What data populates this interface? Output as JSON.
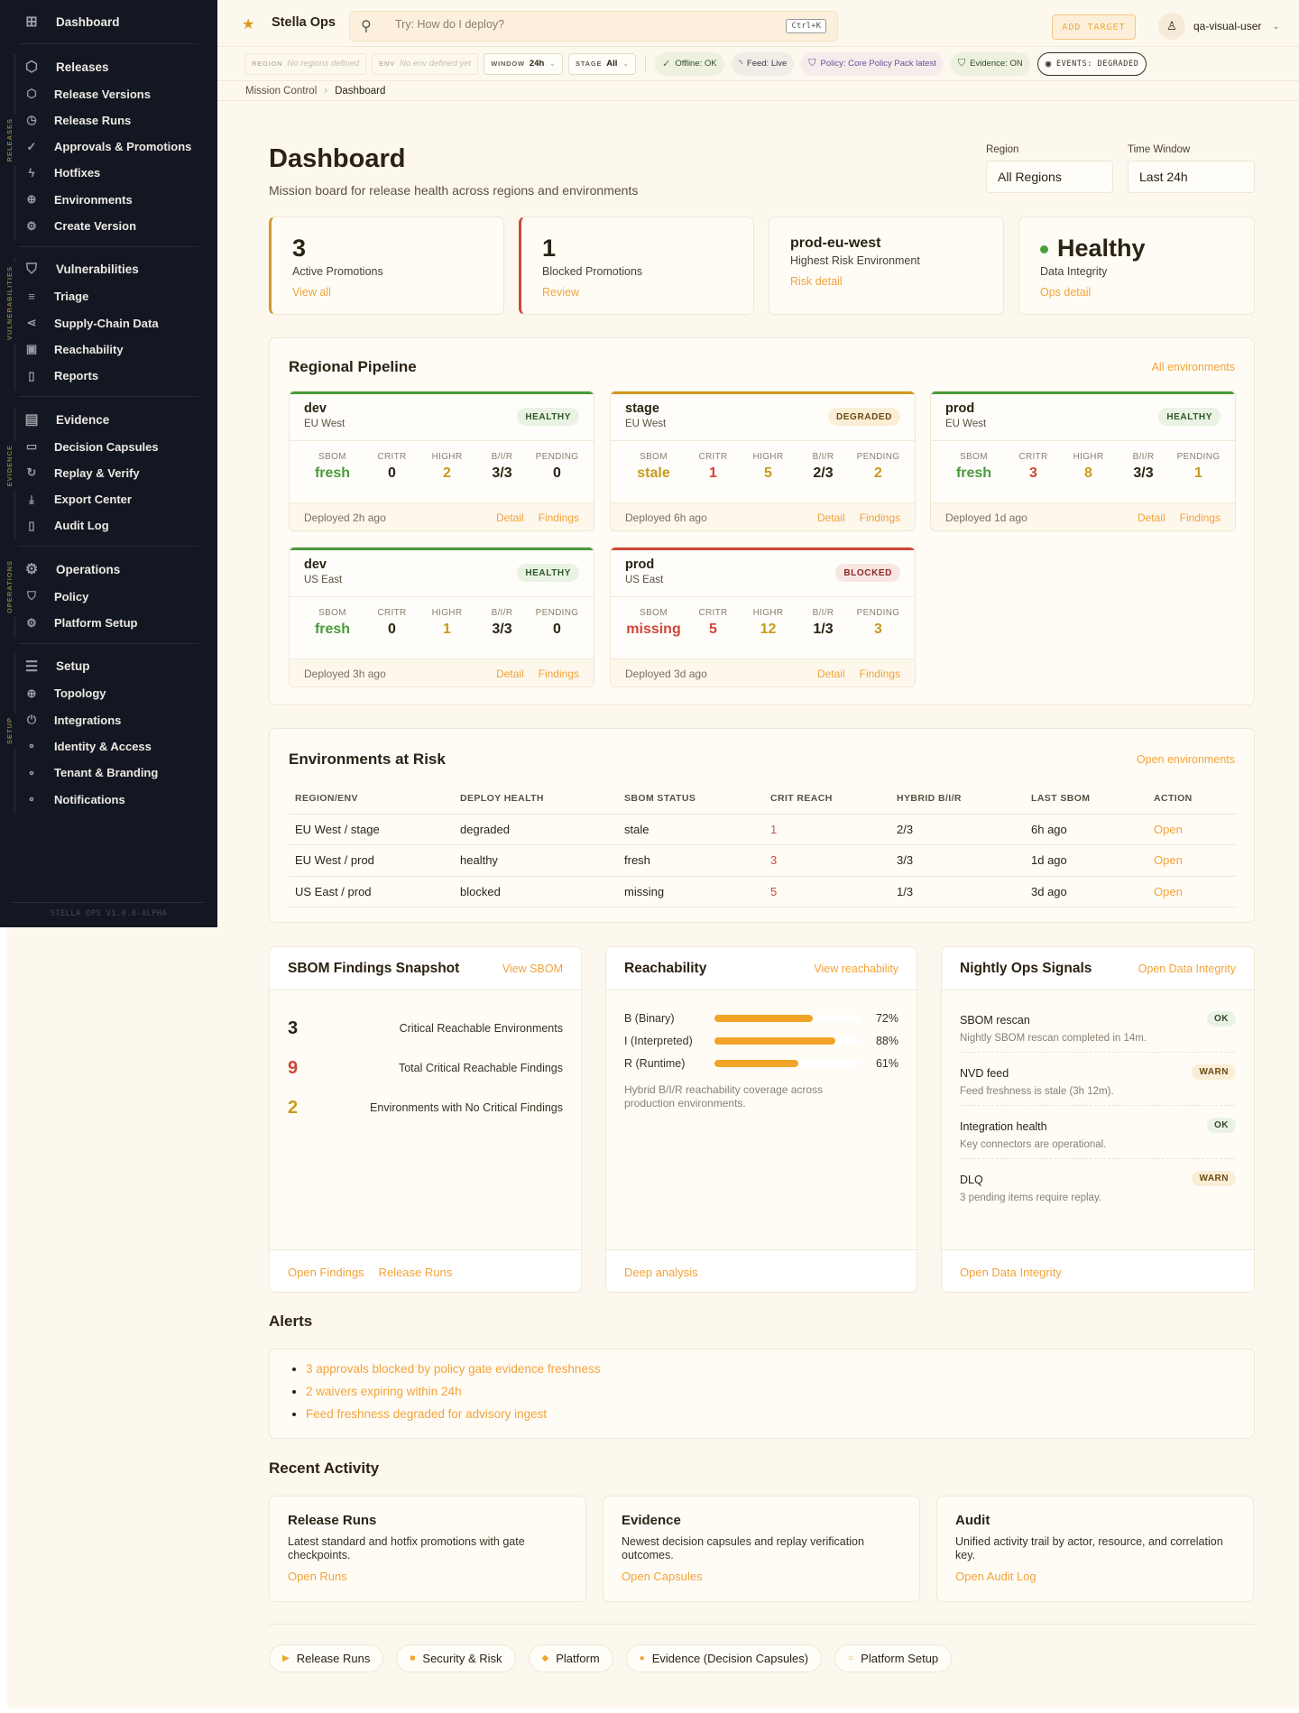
{
  "brand": {
    "name": "Stella Ops",
    "logo_icon": "star-logo-icon"
  },
  "search": {
    "placeholder": "Try: How do I deploy?",
    "shortcut": "Ctrl+K"
  },
  "topbar": {
    "add_target": "ADD TARGET",
    "user": "qa-visual-user"
  },
  "context": {
    "region_label": "REGION",
    "region_value": "No regions defined",
    "env_label": "ENV",
    "env_value": "No env defined yet",
    "window_label": "WINDOW",
    "window_value": "24h",
    "stage_label": "STAGE",
    "stage_value": "All"
  },
  "status_chips": [
    {
      "icon": "check-circle-icon",
      "glyph": "✓",
      "label": "Offline: OK",
      "tone": "ok"
    },
    {
      "icon": "rss-icon",
      "glyph": "◝",
      "label": "Feed: Live",
      "tone": "neutral"
    },
    {
      "icon": "shield-icon",
      "glyph": "⛉",
      "label": "Policy: Core Policy Pack latest",
      "tone": "policy"
    },
    {
      "icon": "shield-check-icon",
      "glyph": "⛉",
      "label": "Evidence: ON",
      "tone": "ok"
    },
    {
      "icon": "record-icon",
      "glyph": "◉",
      "label": "EVENTS: DEGRADED",
      "tone": "outline"
    }
  ],
  "breadcrumb": {
    "parent": "Mission Control",
    "current": "Dashboard"
  },
  "sidebar": {
    "dashboard": {
      "icon": "grid-icon",
      "glyph": "⊞",
      "label": "Dashboard"
    },
    "groups": [
      {
        "section": "RELEASES",
        "header": {
          "icon": "package-icon",
          "glyph": "⬡",
          "label": "Releases"
        },
        "items": [
          {
            "icon": "package-icon",
            "glyph": "⬡",
            "label": "Release Versions"
          },
          {
            "icon": "clock-icon",
            "glyph": "◷",
            "label": "Release Runs"
          },
          {
            "icon": "check-circle-icon",
            "glyph": "✓",
            "label": "Approvals & Promotions"
          },
          {
            "icon": "bolt-icon",
            "glyph": "ϟ",
            "label": "Hotfixes"
          },
          {
            "icon": "globe-icon",
            "glyph": "⊕",
            "label": "Environments"
          },
          {
            "icon": "gear-icon",
            "glyph": "⚙",
            "label": "Create Version"
          }
        ]
      },
      {
        "section": "VULNERABILITIES",
        "header": {
          "icon": "shield-icon",
          "glyph": "⛉",
          "label": "Vulnerabilities"
        },
        "items": [
          {
            "icon": "list-icon",
            "glyph": "≡",
            "label": "Triage"
          },
          {
            "icon": "share-icon",
            "glyph": "⋖",
            "label": "Supply-Chain Data"
          },
          {
            "icon": "chip-icon",
            "glyph": "▣",
            "label": "Reachability"
          },
          {
            "icon": "book-icon",
            "glyph": "▯",
            "label": "Reports"
          }
        ]
      },
      {
        "section": "EVIDENCE",
        "header": {
          "icon": "document-icon",
          "glyph": "▤",
          "label": "Evidence"
        },
        "items": [
          {
            "icon": "archive-icon",
            "glyph": "▭",
            "label": "Decision Capsules"
          },
          {
            "icon": "refresh-icon",
            "glyph": "↻",
            "label": "Replay & Verify"
          },
          {
            "icon": "download-icon",
            "glyph": "⤓",
            "label": "Export Center"
          },
          {
            "icon": "book-icon",
            "glyph": "▯",
            "label": "Audit Log"
          }
        ]
      },
      {
        "section": "OPERATIONS",
        "header": {
          "icon": "gear-icon",
          "glyph": "⚙",
          "label": "Operations"
        },
        "items": [
          {
            "icon": "shield-icon",
            "glyph": "⛉",
            "label": "Policy"
          },
          {
            "icon": "gear-icon",
            "glyph": "⚙",
            "label": "Platform Setup"
          }
        ]
      },
      {
        "section": "SETUP",
        "header": {
          "icon": "server-icon",
          "glyph": "☰",
          "label": "Setup"
        },
        "items": [
          {
            "icon": "globe-icon",
            "glyph": "⊕",
            "label": "Topology"
          },
          {
            "icon": "power-icon",
            "glyph": "⏻",
            "label": "Integrations"
          },
          {
            "icon": "dot-icon",
            "glyph": "∘",
            "label": "Identity & Access"
          },
          {
            "icon": "dot-icon",
            "glyph": "∘",
            "label": "Tenant & Branding"
          },
          {
            "icon": "dot-icon",
            "glyph": "∘",
            "label": "Notifications"
          }
        ]
      }
    ],
    "footer": "STELLA OPS V1.0.0-ALPHA"
  },
  "header": {
    "title": "Dashboard",
    "subtitle": "Mission board for release health across regions and environments",
    "region_label": "Region",
    "region_value": "All Regions",
    "window_label": "Time Window",
    "window_value": "Last 24h"
  },
  "kpis": [
    {
      "value": "3",
      "label": "Active Promotions",
      "link": "View all",
      "accent": "amber"
    },
    {
      "value": "1",
      "label": "Blocked Promotions",
      "link": "Review",
      "accent": "red"
    },
    {
      "value": "prod-eu-west",
      "label": "Highest Risk Environment",
      "link": "Risk detail",
      "accent": "none"
    },
    {
      "value": "Healthy",
      "label": "Data Integrity",
      "link": "Ops detail",
      "accent": "none",
      "dot_color": "#4aa03c"
    }
  ],
  "pipeline": {
    "title": "Regional Pipeline",
    "link": "All environments",
    "metric_labels": [
      "SBOM",
      "CRITR",
      "HIGHR",
      "B/I/R",
      "PENDING"
    ],
    "detail_label": "Detail",
    "findings_label": "Findings",
    "cards": [
      {
        "name": "dev",
        "region": "EU West",
        "status": "HEALTHY",
        "tone": "healthy",
        "color": "#4a9a3c",
        "metrics": [
          "fresh",
          "0",
          "2",
          "3/3",
          "0"
        ],
        "deployed": "Deployed 2h ago"
      },
      {
        "name": "stage",
        "region": "EU West",
        "status": "DEGRADED",
        "tone": "degraded",
        "color": "#cf9a22",
        "metrics": [
          "stale",
          "1",
          "5",
          "2/3",
          "2"
        ],
        "deployed": "Deployed 6h ago"
      },
      {
        "name": "prod",
        "region": "EU West",
        "status": "HEALTHY",
        "tone": "healthy",
        "color": "#4a9a3c",
        "metrics": [
          "fresh",
          "3",
          "8",
          "3/3",
          "1"
        ],
        "deployed": "Deployed 1d ago"
      },
      {
        "name": "dev",
        "region": "US East",
        "status": "HEALTHY",
        "tone": "healthy",
        "color": "#4a9a3c",
        "metrics": [
          "fresh",
          "0",
          "1",
          "3/3",
          "0"
        ],
        "deployed": "Deployed 3h ago"
      },
      {
        "name": "prod",
        "region": "US East",
        "status": "BLOCKED",
        "tone": "blocked",
        "color": "#d0453a",
        "metrics": [
          "missing",
          "5",
          "12",
          "1/3",
          "3"
        ],
        "deployed": "Deployed 3d ago"
      }
    ]
  },
  "risk": {
    "title": "Environments at Risk",
    "link": "Open environments",
    "columns": [
      "REGION/ENV",
      "DEPLOY HEALTH",
      "SBOM STATUS",
      "CRIT REACH",
      "HYBRID B/I/R",
      "LAST SBOM",
      "ACTION"
    ],
    "rows": [
      [
        "EU West / stage",
        "degraded",
        "stale",
        "1",
        "2/3",
        "6h ago",
        "Open"
      ],
      [
        "EU West / prod",
        "healthy",
        "fresh",
        "3",
        "3/3",
        "1d ago",
        "Open"
      ],
      [
        "US East / prod",
        "blocked",
        "missing",
        "5",
        "1/3",
        "3d ago",
        "Open"
      ]
    ]
  },
  "sbom": {
    "title": "SBOM Findings Snapshot",
    "link": "View SBOM",
    "rows": [
      {
        "value": "3",
        "label": "Critical Reachable Environments",
        "tone": "d"
      },
      {
        "value": "9",
        "label": "Total Critical Reachable Findings",
        "tone": "r"
      },
      {
        "value": "2",
        "label": "Environments with No Critical Findings",
        "tone": "a"
      }
    ],
    "footer_links": [
      "Open Findings",
      "Release Runs"
    ]
  },
  "reach": {
    "title": "Reachability",
    "link": "View reachability",
    "rows": [
      {
        "label": "B (Binary)",
        "percent": 72
      },
      {
        "label": "I (Interpreted)",
        "percent": 88
      },
      {
        "label": "R (Runtime)",
        "percent": 61
      }
    ],
    "description": "Hybrid B/I/R reachability coverage across production environments.",
    "footer_link": "Deep analysis"
  },
  "nightly": {
    "title": "Nightly Ops Signals",
    "link": "Open Data Integrity",
    "rows": [
      {
        "title": "SBOM rescan",
        "desc": "Nightly SBOM rescan completed in 14m.",
        "status": "OK"
      },
      {
        "title": "NVD feed",
        "desc": "Feed freshness is stale (3h 12m).",
        "status": "WARN"
      },
      {
        "title": "Integration health",
        "desc": "Key connectors are operational.",
        "status": "OK"
      },
      {
        "title": "DLQ",
        "desc": "3 pending items require replay.",
        "status": "WARN"
      }
    ],
    "footer_link": "Open Data Integrity"
  },
  "alerts": {
    "title": "Alerts",
    "items": [
      "3 approvals blocked by policy gate evidence freshness",
      "2 waivers expiring within 24h",
      "Feed freshness degraded for advisory ingest"
    ]
  },
  "recent": {
    "title": "Recent Activity",
    "cards": [
      {
        "title": "Release Runs",
        "desc": "Latest standard and hotfix promotions with gate checkpoints.",
        "link": "Open Runs"
      },
      {
        "title": "Evidence",
        "desc": "Newest decision capsules and replay verification outcomes.",
        "link": "Open Capsules"
      },
      {
        "title": "Audit",
        "desc": "Unified activity trail by actor, resource, and correlation key.",
        "link": "Open Audit Log"
      }
    ]
  },
  "quick_links": [
    {
      "icon": "play-icon",
      "glyph": "▶",
      "label": "Release Runs"
    },
    {
      "icon": "square-icon",
      "glyph": "■",
      "label": "Security & Risk"
    },
    {
      "icon": "diamond-icon",
      "glyph": "◆",
      "label": "Platform"
    },
    {
      "icon": "dot-icon",
      "glyph": "●",
      "label": "Evidence (Decision Capsules)"
    },
    {
      "icon": "circle-icon",
      "glyph": "○",
      "label": "Platform Setup"
    }
  ],
  "colors": {
    "accent": "#f2a33a",
    "sidebar": "#131722",
    "background": "#fdf8ee",
    "healthy": "#4a9a3c",
    "degraded": "#cf9a22",
    "blocked": "#d0453a"
  }
}
